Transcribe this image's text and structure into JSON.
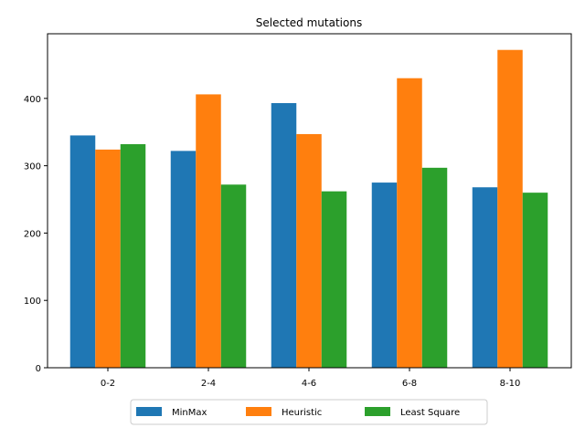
{
  "chart_data": {
    "type": "bar",
    "title": "Selected mutations",
    "xlabel": "",
    "ylabel": "",
    "categories": [
      "0-2",
      "2-4",
      "4-6",
      "6-8",
      "8-10"
    ],
    "series": [
      {
        "name": "MinMax",
        "color": "#1f77b4",
        "values": [
          345,
          322,
          393,
          275,
          268
        ]
      },
      {
        "name": "Heuristic",
        "color": "#ff7f0e",
        "values": [
          324,
          406,
          347,
          430,
          472
        ]
      },
      {
        "name": "Least Square",
        "color": "#2ca02c",
        "values": [
          332,
          272,
          262,
          297,
          260
        ]
      }
    ],
    "ylim": [
      0,
      496
    ],
    "yticks": [
      0,
      100,
      200,
      300,
      400
    ],
    "grid": false,
    "legend_position": "bottom-center"
  }
}
